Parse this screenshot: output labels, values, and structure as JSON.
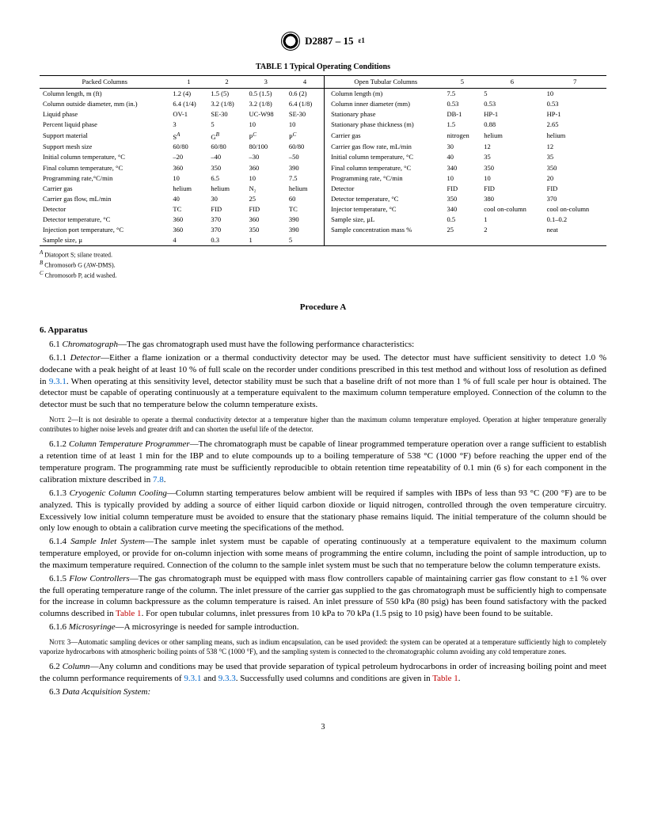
{
  "header": {
    "designation": "D2887 – 15",
    "epsilon": "ɛ1"
  },
  "table": {
    "title": "TABLE 1 Typical Operating Conditions",
    "left_header": "Packed Columns",
    "right_header": "Open Tubular Columns",
    "col_nums_left": [
      "1",
      "2",
      "3",
      "4"
    ],
    "col_nums_right": [
      "5",
      "6",
      "7"
    ],
    "rows": [
      {
        "l_label": "Column length, m (ft)",
        "l": [
          "1.2 (4)",
          "1.5 (5)",
          "0.5 (1.5)",
          "0.6 (2)"
        ],
        "r_label": "Column length (m)",
        "r": [
          "7.5",
          "5",
          "10"
        ]
      },
      {
        "l_label": "Column outside diameter, mm (in.)",
        "l": [
          "6.4 (1/4)",
          "3.2 (1/8)",
          "3.2 (1/8)",
          "6.4 (1/8)"
        ],
        "r_label": "Column inner diameter (mm)",
        "r": [
          "0.53",
          "0.53",
          "0.53"
        ]
      },
      {
        "l_label": "Liquid phase",
        "l": [
          "OV-1",
          "SE-30",
          "UC-W98",
          "SE-30"
        ],
        "r_label": "Stationary phase",
        "r": [
          "DB-1",
          "HP-1",
          "HP-1"
        ]
      },
      {
        "l_label": "Percent liquid phase",
        "l": [
          "3",
          "5",
          "10",
          "10"
        ],
        "r_label": "Stationary phase thickness (m)",
        "r": [
          "1.5",
          "0.88",
          "2.65"
        ]
      },
      {
        "l_label": "Support material",
        "l_html": [
          "S<sup class='s'><i>A</i></sup>",
          "G<sup class='s'><i>B</i></sup>",
          "P<sup class='s'><i>C</i></sup>",
          "P<sup class='s'><i>C</i></sup>"
        ],
        "r_label": "Carrier gas",
        "r": [
          "nitrogen",
          "helium",
          "helium"
        ]
      },
      {
        "l_label": "Support mesh size",
        "l": [
          "60/80",
          "60/80",
          "80/100",
          "60/80"
        ],
        "r_label": "Carrier gas flow rate, mL/min",
        "r": [
          "30",
          "12",
          "12"
        ]
      },
      {
        "l_label": "Initial column temperature, °C",
        "l": [
          "–20",
          "–40",
          "–30",
          "–50"
        ],
        "r_label": "Initial column temperature, °C",
        "r": [
          "40",
          "35",
          "35"
        ]
      },
      {
        "l_label": "Final column temperature, °C",
        "l": [
          "360",
          "350",
          "360",
          "390"
        ],
        "r_label": "Final column temperature, °C",
        "r": [
          "340",
          "350",
          "350"
        ]
      },
      {
        "l_label": "Programming rate,°C/min",
        "l": [
          "10",
          "6.5",
          "10",
          "7.5"
        ],
        "r_label": "Programming rate, °C/min",
        "r": [
          "10",
          "10",
          "20"
        ]
      },
      {
        "l_label": "Carrier gas",
        "l": [
          "helium",
          "helium",
          "N₂",
          "helium"
        ],
        "r_label": "Detector",
        "r": [
          "FID",
          "FID",
          "FID"
        ]
      },
      {
        "l_label": "Carrier gas flow, mL/min",
        "l": [
          "40",
          "30",
          "25",
          "60"
        ],
        "r_label": "Detector temperature, °C",
        "r": [
          "350",
          "380",
          "370"
        ]
      },
      {
        "l_label": "Detector",
        "l": [
          "TC",
          "FID",
          "FID",
          "TC"
        ],
        "r_label": "Injector temperature, °C",
        "r": [
          "340",
          "cool on-column",
          "cool on-column"
        ]
      },
      {
        "l_label": "Detector temperature, °C",
        "l": [
          "360",
          "370",
          "360",
          "390"
        ],
        "r_label": "Sample size, µL",
        "r": [
          "0.5",
          "1",
          "0.1–0.2"
        ]
      },
      {
        "l_label": "Injection port temperature, °C",
        "l": [
          "360",
          "370",
          "350",
          "390"
        ],
        "r_label": "Sample concentration mass %",
        "r": [
          "25",
          "2",
          "neat"
        ]
      },
      {
        "l_label": "Sample size, µ",
        "l": [
          "4",
          "0.3",
          "1",
          "5"
        ],
        "r_label": "",
        "r": [
          "",
          "",
          ""
        ]
      }
    ],
    "footnotes": [
      {
        "sup": "A",
        "text": "Diatoport S; silane treated."
      },
      {
        "sup": "B",
        "text": "Chromosorb G (AW-DMS)."
      },
      {
        "sup": "C",
        "text": "Chromosorb P, acid washed."
      }
    ]
  },
  "procedure_title": "Procedure A",
  "section6": {
    "heading": "6. Apparatus",
    "p6_1": {
      "num": "6.1",
      "title": "Chromatograph",
      "text": "—The gas chromatograph used must have the following performance characteristics:"
    },
    "p6_1_1": {
      "num": "6.1.1",
      "title": "Detector",
      "text_a": "—Either a flame ionization or a thermal conductivity detector may be used. The detector must have sufficient sensitivity to detect 1.0 % dodecane with a peak height of at least 10 % of full scale on the recorder under conditions prescribed in this test method and without loss of resolution as defined in ",
      "link1": "9.3.1",
      "text_b": ". When operating at this sensitivity level, detector stability must be such that a baseline drift of not more than 1 % of full scale per hour is obtained. The detector must be capable of operating continuously at a temperature equivalent to the maximum column temperature employed. Connection of the column to the detector must be such that no temperature below the column temperature exists."
    },
    "note2": {
      "label": "Note 2",
      "text": "—It is not desirable to operate a thermal conductivity detector at a temperature higher than the maximum column temperature employed. Operation at higher temperature generally contributes to higher noise levels and greater drift and can shorten the useful life of the detector."
    },
    "p6_1_2": {
      "num": "6.1.2",
      "title": "Column Temperature Programmer",
      "text_a": "—The chromatograph must be capable of linear programmed temperature operation over a range sufficient to establish a retention time of at least 1 min for the IBP and to elute compounds up to a boiling temperature of 538 °C (1000 °F) before reaching the upper end of the temperature program. The programming rate must be sufficiently reproducible to obtain retention time repeatability of 0.1 min (6 s) for each component in the calibration mixture described in ",
      "link1": "7.8",
      "text_b": "."
    },
    "p6_1_3": {
      "num": "6.1.3",
      "title": "Cryogenic Column Cooling",
      "text": "—Column starting temperatures below ambient will be required if samples with IBPs of less than 93 °C (200 °F) are to be analyzed. This is typically provided by adding a source of either liquid carbon dioxide or liquid nitrogen, controlled through the oven temperature circuitry. Excessively low initial column temperature must be avoided to ensure that the stationary phase remains liquid. The initial temperature of the column should be only low enough to obtain a calibration curve meeting the specifications of the method."
    },
    "p6_1_4": {
      "num": "6.1.4",
      "title": "Sample Inlet System",
      "text": "—The sample inlet system must be capable of operating continuously at a temperature equivalent to the maximum column temperature employed, or provide for on-column injection with some means of programming the entire column, including the point of sample introduction, up to the maximum temperature required. Connection of the column to the sample inlet system must be such that no temperature below the column temperature exists."
    },
    "p6_1_5": {
      "num": "6.1.5",
      "title": "Flow Controllers",
      "text_a": "—The gas chromatograph must be equipped with mass flow controllers capable of maintaining carrier gas flow constant to ±1 % over the full operating temperature range of the column. The inlet pressure of the carrier gas supplied to the gas chromatograph must be sufficiently high to compensate for the increase in column backpressure as the column temperature is raised. An inlet pressure of 550 kPa (80 psig) has been found satisfactory with the packed columns described in ",
      "link1": "Table 1",
      "text_b": ". For open tubular columns, inlet pressures from 10 kPa to 70 kPa (1.5 psig to 10 psig) have been found to be suitable."
    },
    "p6_1_6": {
      "num": "6.1.6",
      "title": "Microsyringe",
      "text": "—A microsyringe is needed for sample introduction."
    },
    "note3": {
      "label": "Note 3",
      "text": "—Automatic sampling devices or other sampling means, such as indium encapsulation, can be used provided: the system can be operated at a temperature sufficiently high to completely vaporize hydrocarbons with atmospheric boiling points of 538 °C (1000 °F), and the sampling system is connected to the chromatographic column avoiding any cold temperature zones."
    },
    "p6_2": {
      "num": "6.2",
      "title": "Column",
      "text_a": "—Any column and conditions may be used that provide separation of typical petroleum hydrocarbons in order of increasing boiling point and meet the column performance requirements of ",
      "link1": "9.3.1",
      "text_b": " and ",
      "link2": "9.3.3",
      "text_c": ". Successfully used columns and conditions are given in ",
      "link3": "Table 1",
      "text_d": "."
    },
    "p6_3": {
      "num": "6.3",
      "title": "Data Acquisition System:",
      "text": ""
    }
  },
  "page_num": "3"
}
